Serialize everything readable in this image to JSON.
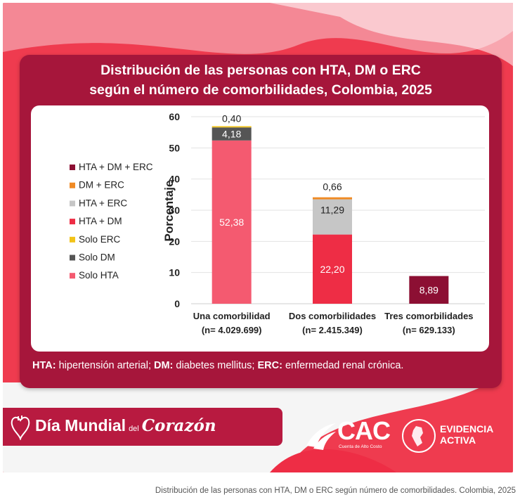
{
  "poster": {
    "title_line1": "Distribución de las personas con HTA, DM o ERC",
    "title_line2": "según el número de comorbilidades, Colombia, 2025",
    "footnote": {
      "abbr1": "HTA:",
      "def1": " hipertensión arterial; ",
      "abbr2": "DM:",
      "def2": " diabetes mellitus; ",
      "abbr3": "ERC:",
      "def3": " enfermedad renal crónica."
    },
    "brand": {
      "dia": "Día Mundial",
      "del": "del",
      "corazon": "Corazón",
      "cac": "CAC",
      "cac_sub": "Cuenta de Alto Costo",
      "ea_line1": "EVIDENCIA",
      "ea_line2": "ACTIVA"
    },
    "colors": {
      "background_red": "#ef3b4f",
      "card": "#a6163b",
      "dark_red": "#b81a40"
    }
  },
  "caption": "Distribución de las personas con HTA, DM o ERC según número de comorbilidades. Colombia, 2025",
  "chart_data": {
    "type": "bar",
    "stacked": true,
    "title": "Distribución de las personas con HTA, DM o ERC según el número de comorbilidades, Colombia, 2025",
    "ylabel": "Porcentaje",
    "xlabel": "",
    "ylim": [
      0,
      60
    ],
    "yticks": [
      0,
      10,
      20,
      30,
      40,
      50,
      60
    ],
    "grid": true,
    "legend_position": "left",
    "categories": [
      {
        "label": "Una comorbilidad",
        "n": "(n= 4.029.699)"
      },
      {
        "label": "Dos comorbilidades",
        "n": "(n= 2.415.349)"
      },
      {
        "label": "Tres comorbilidades",
        "n": "(n= 629.133)"
      }
    ],
    "series": [
      {
        "name": "Solo HTA",
        "color": "#f45a70",
        "values": [
          52.38,
          0,
          0
        ],
        "labels": [
          "52,38",
          "",
          ""
        ]
      },
      {
        "name": "Solo DM",
        "color": "#555555",
        "values": [
          4.18,
          0,
          0
        ],
        "labels": [
          "4,18",
          "",
          ""
        ]
      },
      {
        "name": "Solo ERC",
        "color": "#f2c318",
        "values": [
          0.4,
          0,
          0
        ],
        "labels": [
          "0,40",
          "",
          ""
        ]
      },
      {
        "name": "HTA + DM",
        "color": "#ee2d45",
        "values": [
          0,
          22.2,
          0
        ],
        "labels": [
          "",
          "22,20",
          ""
        ]
      },
      {
        "name": "HTA + ERC",
        "color": "#c6c6c6",
        "values": [
          0,
          11.29,
          0
        ],
        "labels": [
          "",
          "11,29",
          ""
        ]
      },
      {
        "name": "DM + ERC",
        "color": "#f08a24",
        "values": [
          0,
          0.66,
          0
        ],
        "labels": [
          "",
          "0,66",
          ""
        ]
      },
      {
        "name": "HTA + DM + ERC",
        "color": "#8c0f33",
        "values": [
          0,
          0,
          8.89
        ],
        "labels": [
          "",
          "",
          "8,89"
        ]
      }
    ],
    "legend_order": [
      "HTA + DM + ERC",
      "DM + ERC",
      "HTA + ERC",
      "HTA + DM",
      "Solo ERC",
      "Solo DM",
      "Solo HTA"
    ]
  }
}
